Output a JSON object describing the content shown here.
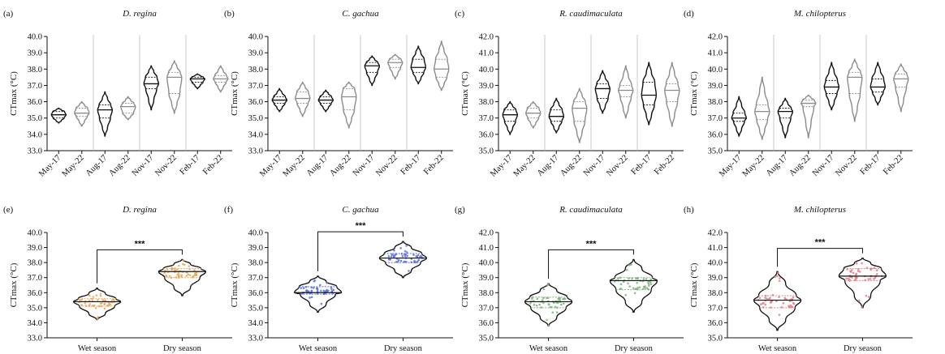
{
  "figure": {
    "top_categories": [
      "May-17",
      "May-22",
      "Aug-17",
      "Aug-22",
      "Nov-17",
      "Nov-22",
      "Feb-17",
      "Feb-22"
    ],
    "bottom_categories": [
      "Wet season",
      "Dry season"
    ],
    "colors": {
      "year2017": "#111111",
      "year2022": "#8c8c8c",
      "D. regina": "#e8a65a",
      "C. gachua": "#5b6ee0",
      "R. caudimaculata": "#7fb27f",
      "M. chilopterus": "#e07f8a"
    }
  },
  "chart_data": [
    {
      "panel": "(a)",
      "title": "D. regina",
      "type": "violin",
      "ylabel": "CTmax (°C)",
      "ylim": [
        33.0,
        40.0
      ],
      "yticks": [
        "33.0",
        "34.0",
        "35.0",
        "36.0",
        "37.0",
        "38.0",
        "39.0",
        "40.0"
      ],
      "categories": [
        "May-17",
        "May-22",
        "Aug-17",
        "Aug-22",
        "Nov-17",
        "Nov-22",
        "Feb-17",
        "Feb-22"
      ],
      "series": [
        {
          "min": 34.7,
          "q1": 35.0,
          "median": 35.2,
          "q3": 35.4,
          "max": 35.6
        },
        {
          "min": 34.5,
          "q1": 35.1,
          "median": 35.3,
          "q3": 35.6,
          "max": 36.0
        },
        {
          "min": 33.9,
          "q1": 35.0,
          "median": 35.5,
          "q3": 35.8,
          "max": 36.6
        },
        {
          "min": 34.9,
          "q1": 35.3,
          "median": 35.7,
          "q3": 35.9,
          "max": 36.3
        },
        {
          "min": 35.5,
          "q1": 36.8,
          "median": 37.1,
          "q3": 37.5,
          "max": 38.2
        },
        {
          "min": 35.3,
          "q1": 36.5,
          "median": 37.5,
          "q3": 37.8,
          "max": 38.5
        },
        {
          "min": 36.8,
          "q1": 37.2,
          "median": 37.4,
          "q3": 37.5,
          "max": 37.7
        },
        {
          "min": 36.6,
          "q1": 37.2,
          "median": 37.4,
          "q3": 37.6,
          "max": 38.2
        }
      ]
    },
    {
      "panel": "(b)",
      "title": "C. gachua",
      "type": "violin",
      "ylabel": "CTmax (°C)",
      "ylim": [
        33.0,
        40.0
      ],
      "yticks": [
        "33.0",
        "34.0",
        "35.0",
        "36.0",
        "37.0",
        "38.0",
        "39.0",
        "40.0"
      ],
      "categories": [
        "May-17",
        "May-22",
        "Aug-17",
        "Aug-22",
        "Nov-17",
        "Nov-22",
        "Feb-17",
        "Feb-22"
      ],
      "series": [
        {
          "min": 35.4,
          "q1": 35.9,
          "median": 36.1,
          "q3": 36.3,
          "max": 36.8
        },
        {
          "min": 35.1,
          "q1": 35.9,
          "median": 36.2,
          "q3": 36.6,
          "max": 37.2
        },
        {
          "min": 35.4,
          "q1": 35.9,
          "median": 36.1,
          "q3": 36.3,
          "max": 36.7
        },
        {
          "min": 34.4,
          "q1": 35.5,
          "median": 36.3,
          "q3": 36.8,
          "max": 37.2
        },
        {
          "min": 37.0,
          "q1": 37.8,
          "median": 38.2,
          "q3": 38.4,
          "max": 38.8
        },
        {
          "min": 37.4,
          "q1": 38.1,
          "median": 38.4,
          "q3": 38.6,
          "max": 38.9
        },
        {
          "min": 37.1,
          "q1": 37.8,
          "median": 38.1,
          "q3": 38.6,
          "max": 39.4
        },
        {
          "min": 36.7,
          "q1": 37.5,
          "median": 38.0,
          "q3": 38.6,
          "max": 39.7
        }
      ]
    },
    {
      "panel": "(c)",
      "title": "R. caudimaculata",
      "type": "violin",
      "ylabel": "CTmax (°C)",
      "ylim": [
        35.0,
        42.0
      ],
      "yticks": [
        "35.0",
        "36.0",
        "37.0",
        "38.0",
        "39.0",
        "40.0",
        "41.0",
        "42.0"
      ],
      "categories": [
        "May-17",
        "May-22",
        "Aug-17",
        "Aug-22",
        "Nov-17",
        "Nov-22",
        "Feb-17",
        "Feb-22"
      ],
      "series": [
        {
          "min": 36.0,
          "q1": 36.8,
          "median": 37.2,
          "q3": 37.5,
          "max": 38.0
        },
        {
          "min": 36.4,
          "q1": 37.0,
          "median": 37.3,
          "q3": 37.6,
          "max": 38.0
        },
        {
          "min": 36.1,
          "q1": 36.8,
          "median": 37.1,
          "q3": 37.5,
          "max": 38.2
        },
        {
          "min": 35.5,
          "q1": 36.8,
          "median": 37.6,
          "q3": 38.0,
          "max": 38.8
        },
        {
          "min": 37.3,
          "q1": 38.2,
          "median": 38.8,
          "q3": 39.1,
          "max": 39.9
        },
        {
          "min": 37.0,
          "q1": 38.3,
          "median": 38.7,
          "q3": 39.0,
          "max": 40.2
        },
        {
          "min": 36.6,
          "q1": 37.8,
          "median": 38.4,
          "q3": 39.2,
          "max": 40.4
        },
        {
          "min": 36.5,
          "q1": 38.0,
          "median": 38.7,
          "q3": 39.1,
          "max": 40.4
        }
      ]
    },
    {
      "panel": "(d)",
      "title": "M. chilopterus",
      "type": "violin",
      "ylabel": "CTmax (°C)",
      "ylim": [
        35.0,
        42.0
      ],
      "yticks": [
        "35.0",
        "36.0",
        "37.0",
        "38.0",
        "39.0",
        "40.0",
        "41.0",
        "42.0"
      ],
      "categories": [
        "May-17",
        "May-22",
        "Aug-17",
        "Aug-22",
        "Nov-17",
        "Nov-22",
        "Feb-17",
        "Feb-22"
      ],
      "series": [
        {
          "min": 35.9,
          "q1": 36.8,
          "median": 37.0,
          "q3": 37.3,
          "max": 38.3
        },
        {
          "min": 35.7,
          "q1": 36.9,
          "median": 37.4,
          "q3": 37.8,
          "max": 39.5
        },
        {
          "min": 35.8,
          "q1": 37.0,
          "median": 37.4,
          "q3": 37.6,
          "max": 38.2
        },
        {
          "min": 35.8,
          "q1": 37.7,
          "median": 37.9,
          "q3": 38.1,
          "max": 38.4
        },
        {
          "min": 37.5,
          "q1": 38.5,
          "median": 38.9,
          "q3": 39.3,
          "max": 40.4
        },
        {
          "min": 36.8,
          "q1": 38.5,
          "median": 39.5,
          "q3": 39.8,
          "max": 40.6
        },
        {
          "min": 37.8,
          "q1": 38.6,
          "median": 38.9,
          "q3": 39.4,
          "max": 40.4
        },
        {
          "min": 37.4,
          "q1": 38.9,
          "median": 39.4,
          "q3": 39.7,
          "max": 40.3
        }
      ]
    },
    {
      "panel": "(e)",
      "title": "D. regina",
      "type": "violin",
      "ylabel": "CTmax (°C)",
      "ylim": [
        33.0,
        40.0
      ],
      "yticks": [
        "33.0",
        "34.0",
        "35.0",
        "36.0",
        "37.0",
        "38.0",
        "39.0",
        "40.0"
      ],
      "categories": [
        "Wet season",
        "Dry season"
      ],
      "significance": "***",
      "series": [
        {
          "min": 34.2,
          "q1": 35.1,
          "median": 35.4,
          "q3": 35.6,
          "max": 36.3
        },
        {
          "min": 35.8,
          "q1": 37.0,
          "median": 37.4,
          "q3": 37.6,
          "max": 38.2
        }
      ]
    },
    {
      "panel": "(f)",
      "title": "C. gachua",
      "type": "violin",
      "ylabel": "CTmax (°C)",
      "ylim": [
        33.0,
        40.0
      ],
      "yticks": [
        "33.0",
        "34.0",
        "35.0",
        "36.0",
        "37.0",
        "38.0",
        "39.0",
        "40.0"
      ],
      "categories": [
        "Wet season",
        "Dry season"
      ],
      "significance": "***",
      "series": [
        {
          "min": 34.7,
          "q1": 35.9,
          "median": 36.0,
          "q3": 36.4,
          "max": 37.1
        },
        {
          "min": 37.0,
          "q1": 38.0,
          "median": 38.3,
          "q3": 38.6,
          "max": 39.4
        }
      ]
    },
    {
      "panel": "(g)",
      "title": "R. caudimaculata",
      "type": "violin",
      "ylabel": "CTmax (°C)",
      "ylim": [
        35.0,
        42.0
      ],
      "yticks": [
        "35.0",
        "36.0",
        "37.0",
        "38.0",
        "39.0",
        "40.0",
        "41.0",
        "42.0"
      ],
      "categories": [
        "Wet season",
        "Dry season"
      ],
      "significance": "***",
      "series": [
        {
          "min": 35.8,
          "q1": 37.0,
          "median": 37.4,
          "q3": 37.7,
          "max": 38.6
        },
        {
          "min": 36.7,
          "q1": 38.2,
          "median": 38.8,
          "q3": 39.0,
          "max": 40.2
        }
      ]
    },
    {
      "panel": "(h)",
      "title": "M. chilopterus",
      "type": "violin",
      "ylabel": "CTmax (°C)",
      "ylim": [
        35.0,
        42.0
      ],
      "yticks": [
        "35.0",
        "36.0",
        "37.0",
        "38.0",
        "39.0",
        "40.0",
        "41.0",
        "42.0"
      ],
      "categories": [
        "Wet season",
        "Dry season"
      ],
      "significance": "***",
      "series": [
        {
          "min": 35.5,
          "q1": 37.0,
          "median": 37.5,
          "q3": 37.8,
          "max": 39.4
        },
        {
          "min": 37.0,
          "q1": 38.8,
          "median": 39.1,
          "q3": 39.6,
          "max": 40.3
        }
      ]
    }
  ]
}
